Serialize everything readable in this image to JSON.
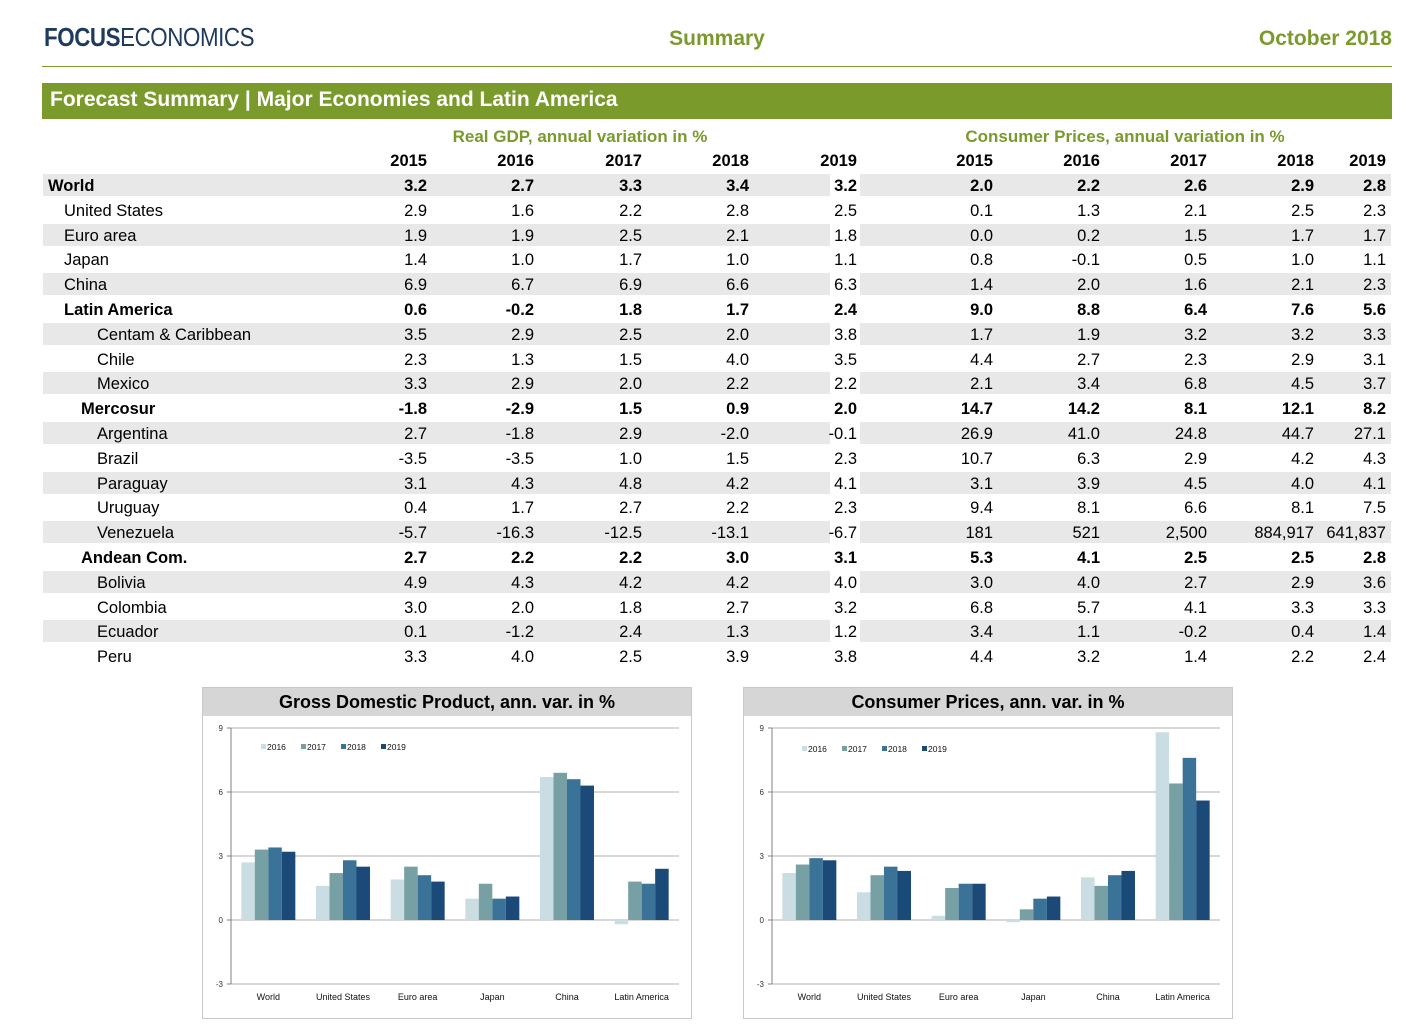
{
  "header": {
    "logo_bold": "FOCUS",
    "logo_light": "ECONOMICS",
    "center": "Summary",
    "date": "October 2018"
  },
  "banner": {
    "title": "Forecast Summary  |  Major Economies and Latin America"
  },
  "table": {
    "gdp_title": "Real GDP, annual variation in %",
    "cpi_title": "Consumer Prices, annual variation in %",
    "years": [
      "2015",
      "2016",
      "2017",
      "2018",
      "2019"
    ],
    "rows": [
      {
        "name": "World",
        "indent": 0,
        "bold": true,
        "gdp": [
          "3.2",
          "2.7",
          "3.3",
          "3.4",
          "3.2"
        ],
        "cpi": [
          "2.0",
          "2.2",
          "2.6",
          "2.9",
          "2.8"
        ]
      },
      {
        "name": "United States",
        "indent": 1,
        "bold": false,
        "gdp": [
          "2.9",
          "1.6",
          "2.2",
          "2.8",
          "2.5"
        ],
        "cpi": [
          "0.1",
          "1.3",
          "2.1",
          "2.5",
          "2.3"
        ]
      },
      {
        "name": "Euro area",
        "indent": 1,
        "bold": false,
        "gdp": [
          "1.9",
          "1.9",
          "2.5",
          "2.1",
          "1.8"
        ],
        "cpi": [
          "0.0",
          "0.2",
          "1.5",
          "1.7",
          "1.7"
        ]
      },
      {
        "name": "Japan",
        "indent": 1,
        "bold": false,
        "gdp": [
          "1.4",
          "1.0",
          "1.7",
          "1.0",
          "1.1"
        ],
        "cpi": [
          "0.8",
          "-0.1",
          "0.5",
          "1.0",
          "1.1"
        ]
      },
      {
        "name": "China",
        "indent": 1,
        "bold": false,
        "gdp": [
          "6.9",
          "6.7",
          "6.9",
          "6.6",
          "6.3"
        ],
        "cpi": [
          "1.4",
          "2.0",
          "1.6",
          "2.1",
          "2.3"
        ]
      },
      {
        "name": "Latin America",
        "indent": 1,
        "bold": true,
        "gdp": [
          "0.6",
          "-0.2",
          "1.8",
          "1.7",
          "2.4"
        ],
        "cpi": [
          "9.0",
          "8.8",
          "6.4",
          "7.6",
          "5.6"
        ]
      },
      {
        "name": "Centam & Caribbean",
        "indent": 3,
        "bold": false,
        "gdp": [
          "3.5",
          "2.9",
          "2.5",
          "2.0",
          "3.8"
        ],
        "cpi": [
          "1.7",
          "1.9",
          "3.2",
          "3.2",
          "3.3"
        ]
      },
      {
        "name": "Chile",
        "indent": 3,
        "bold": false,
        "gdp": [
          "2.3",
          "1.3",
          "1.5",
          "4.0",
          "3.5"
        ],
        "cpi": [
          "4.4",
          "2.7",
          "2.3",
          "2.9",
          "3.1"
        ]
      },
      {
        "name": "Mexico",
        "indent": 3,
        "bold": false,
        "gdp": [
          "3.3",
          "2.9",
          "2.0",
          "2.2",
          "2.2"
        ],
        "cpi": [
          "2.1",
          "3.4",
          "6.8",
          "4.5",
          "3.7"
        ]
      },
      {
        "name": "Mercosur",
        "indent": 2,
        "bold": true,
        "gdp": [
          "-1.8",
          "-2.9",
          "1.5",
          "0.9",
          "2.0"
        ],
        "cpi": [
          "14.7",
          "14.2",
          "8.1",
          "12.1",
          "8.2"
        ]
      },
      {
        "name": "Argentina",
        "indent": 3,
        "bold": false,
        "gdp": [
          "2.7",
          "-1.8",
          "2.9",
          "-2.0",
          "-0.1"
        ],
        "cpi": [
          "26.9",
          "41.0",
          "24.8",
          "44.7",
          "27.1"
        ]
      },
      {
        "name": "Brazil",
        "indent": 3,
        "bold": false,
        "gdp": [
          "-3.5",
          "-3.5",
          "1.0",
          "1.5",
          "2.3"
        ],
        "cpi": [
          "10.7",
          "6.3",
          "2.9",
          "4.2",
          "4.3"
        ]
      },
      {
        "name": "Paraguay",
        "indent": 3,
        "bold": false,
        "gdp": [
          "3.1",
          "4.3",
          "4.8",
          "4.2",
          "4.1"
        ],
        "cpi": [
          "3.1",
          "3.9",
          "4.5",
          "4.0",
          "4.1"
        ]
      },
      {
        "name": "Uruguay",
        "indent": 3,
        "bold": false,
        "gdp": [
          "0.4",
          "1.7",
          "2.7",
          "2.2",
          "2.3"
        ],
        "cpi": [
          "9.4",
          "8.1",
          "6.6",
          "8.1",
          "7.5"
        ]
      },
      {
        "name": "Venezuela",
        "indent": 3,
        "bold": false,
        "gdp": [
          "-5.7",
          "-16.3",
          "-12.5",
          "-13.1",
          "-6.7"
        ],
        "cpi": [
          "181",
          "521",
          "2,500",
          "884,917",
          "641,837"
        ]
      },
      {
        "name": "Andean Com.",
        "indent": 2,
        "bold": true,
        "gdp": [
          "2.7",
          "2.2",
          "2.2",
          "3.0",
          "3.1"
        ],
        "cpi": [
          "5.3",
          "4.1",
          "2.5",
          "2.5",
          "2.8"
        ]
      },
      {
        "name": "Bolivia",
        "indent": 3,
        "bold": false,
        "gdp": [
          "4.9",
          "4.3",
          "4.2",
          "4.2",
          "4.0"
        ],
        "cpi": [
          "3.0",
          "4.0",
          "2.7",
          "2.9",
          "3.6"
        ]
      },
      {
        "name": "Colombia",
        "indent": 3,
        "bold": false,
        "gdp": [
          "3.0",
          "2.0",
          "1.8",
          "2.7",
          "3.2"
        ],
        "cpi": [
          "6.8",
          "5.7",
          "4.1",
          "3.3",
          "3.3"
        ]
      },
      {
        "name": "Ecuador",
        "indent": 3,
        "bold": false,
        "gdp": [
          "0.1",
          "-1.2",
          "2.4",
          "1.3",
          "1.2"
        ],
        "cpi": [
          "3.4",
          "1.1",
          "-0.2",
          "0.4",
          "1.4"
        ]
      },
      {
        "name": "Peru",
        "indent": 3,
        "bold": false,
        "gdp": [
          "3.3",
          "4.0",
          "2.5",
          "3.9",
          "3.8"
        ],
        "cpi": [
          "4.4",
          "3.2",
          "1.4",
          "2.2",
          "2.4"
        ]
      }
    ]
  },
  "chart_data": [
    {
      "type": "bar",
      "title": "Gross Domestic Product, ann. var. in %",
      "categories": [
        "World",
        "United States",
        "Euro area",
        "Japan",
        "China",
        "Latin America"
      ],
      "ylim": [
        -3,
        9
      ],
      "yticks": [
        -3,
        0,
        3,
        6,
        9
      ],
      "legend": "top-left",
      "series": [
        {
          "name": "2016",
          "color": "#c9dde3",
          "values": [
            2.7,
            1.6,
            1.9,
            1.0,
            6.7,
            -0.2
          ]
        },
        {
          "name": "2017",
          "color": "#77a0a4",
          "values": [
            3.3,
            2.2,
            2.5,
            1.7,
            6.9,
            1.8
          ]
        },
        {
          "name": "2018",
          "color": "#3a7298",
          "values": [
            3.4,
            2.8,
            2.1,
            1.0,
            6.6,
            1.7
          ]
        },
        {
          "name": "2019",
          "color": "#1b4a78",
          "values": [
            3.2,
            2.5,
            1.8,
            1.1,
            6.3,
            2.4
          ]
        }
      ]
    },
    {
      "type": "bar",
      "title": "Consumer Prices, ann. var. in %",
      "categories": [
        "World",
        "United States",
        "Euro area",
        "Japan",
        "China",
        "Latin America"
      ],
      "ylim": [
        -3,
        9
      ],
      "yticks": [
        -3,
        0,
        3,
        6,
        9
      ],
      "legend": "top-left",
      "series": [
        {
          "name": "2016",
          "color": "#c9dde3",
          "values": [
            2.2,
            1.3,
            0.2,
            -0.1,
            2.0,
            8.8
          ]
        },
        {
          "name": "2017",
          "color": "#77a0a4",
          "values": [
            2.6,
            2.1,
            1.5,
            0.5,
            1.6,
            6.4
          ]
        },
        {
          "name": "2018",
          "color": "#3a7298",
          "values": [
            2.9,
            2.5,
            1.7,
            1.0,
            2.1,
            7.6
          ]
        },
        {
          "name": "2019",
          "color": "#1b4a78",
          "values": [
            2.8,
            2.3,
            1.7,
            1.1,
            2.3,
            5.6
          ]
        }
      ]
    }
  ]
}
